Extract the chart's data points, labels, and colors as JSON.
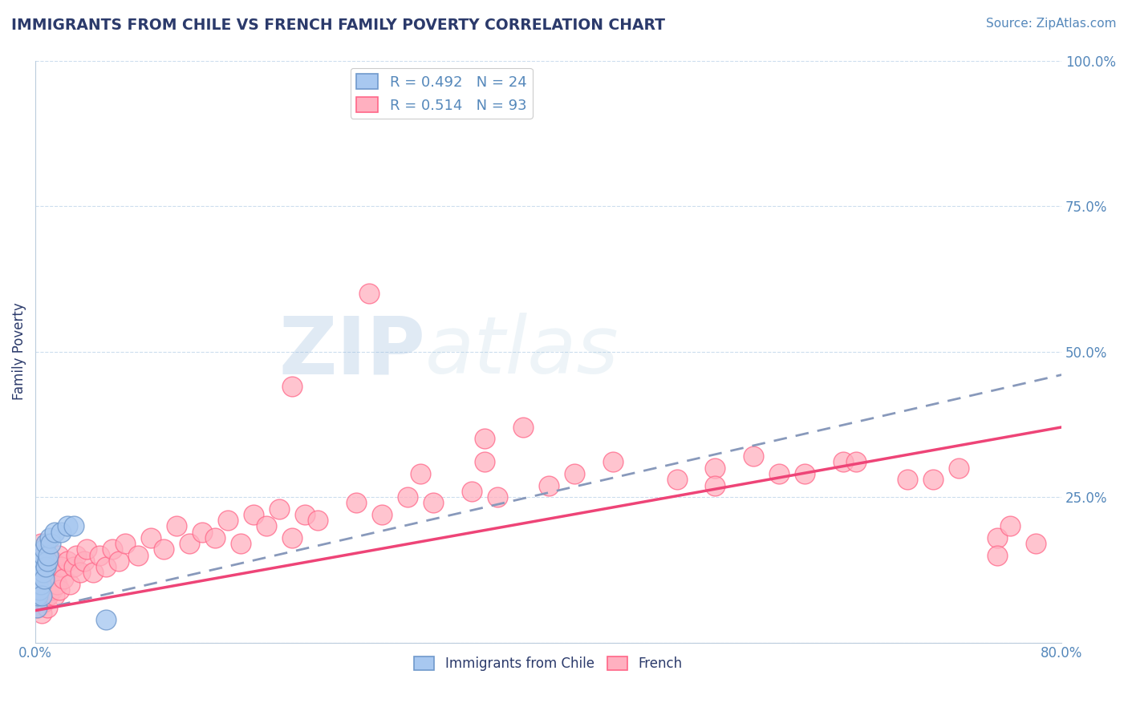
{
  "title": "IMMIGRANTS FROM CHILE VS FRENCH FAMILY POVERTY CORRELATION CHART",
  "source_text": "Source: ZipAtlas.com",
  "ylabel": "Family Poverty",
  "xlim": [
    0.0,
    0.8
  ],
  "ylim": [
    0.0,
    1.0
  ],
  "xticks": [
    0.0,
    0.1,
    0.2,
    0.3,
    0.4,
    0.5,
    0.6,
    0.7,
    0.8
  ],
  "xticklabels": [
    "0.0%",
    "",
    "",
    "",
    "",
    "",
    "",
    "",
    "80.0%"
  ],
  "yticks_right": [
    0.0,
    0.25,
    0.5,
    0.75,
    1.0
  ],
  "yticklabels_right": [
    "",
    "25.0%",
    "50.0%",
    "75.0%",
    "100.0%"
  ],
  "legend_r1": "R = 0.492",
  "legend_n1": "N = 24",
  "legend_r2": "R = 0.514",
  "legend_n2": "N = 93",
  "color_blue": "#A8C8F0",
  "color_pink": "#FFB0C0",
  "color_blue_edge": "#7099CC",
  "color_pink_edge": "#FF6688",
  "color_blue_line": "#8899BB",
  "color_pink_line": "#EE4477",
  "color_title": "#2B3A6B",
  "color_source": "#5588BB",
  "color_axis_labels": "#5588BB",
  "color_legend_text": "#5588BB",
  "watermark_zip": "ZIP",
  "watermark_atlas": "atlas",
  "background_color": "#FFFFFF",
  "grid_color": "#CCDDEE",
  "chile_x": [
    0.001,
    0.002,
    0.002,
    0.003,
    0.003,
    0.004,
    0.004,
    0.005,
    0.005,
    0.006,
    0.006,
    0.007,
    0.007,
    0.008,
    0.008,
    0.009,
    0.01,
    0.011,
    0.012,
    0.015,
    0.02,
    0.025,
    0.03,
    0.055
  ],
  "chile_y": [
    0.06,
    0.08,
    0.1,
    0.09,
    0.12,
    0.1,
    0.13,
    0.08,
    0.14,
    0.12,
    0.15,
    0.11,
    0.16,
    0.13,
    0.17,
    0.14,
    0.15,
    0.18,
    0.17,
    0.19,
    0.19,
    0.2,
    0.2,
    0.04
  ],
  "french_x": [
    0.001,
    0.001,
    0.002,
    0.002,
    0.002,
    0.003,
    0.003,
    0.003,
    0.004,
    0.004,
    0.004,
    0.005,
    0.005,
    0.005,
    0.006,
    0.006,
    0.007,
    0.007,
    0.008,
    0.008,
    0.009,
    0.009,
    0.01,
    0.01,
    0.011,
    0.012,
    0.013,
    0.014,
    0.015,
    0.016,
    0.017,
    0.018,
    0.019,
    0.02,
    0.022,
    0.025,
    0.027,
    0.03,
    0.032,
    0.035,
    0.038,
    0.04,
    0.045,
    0.05,
    0.055,
    0.06,
    0.065,
    0.07,
    0.08,
    0.09,
    0.1,
    0.11,
    0.12,
    0.13,
    0.14,
    0.15,
    0.16,
    0.17,
    0.18,
    0.19,
    0.2,
    0.21,
    0.22,
    0.25,
    0.27,
    0.29,
    0.31,
    0.34,
    0.36,
    0.2,
    0.26,
    0.3,
    0.35,
    0.4,
    0.42,
    0.45,
    0.5,
    0.53,
    0.56,
    0.6,
    0.63,
    0.68,
    0.72,
    0.75,
    0.76,
    0.78,
    0.35,
    0.38,
    0.53,
    0.58,
    0.64,
    0.7,
    0.75
  ],
  "french_y": [
    0.08,
    0.12,
    0.06,
    0.1,
    0.15,
    0.07,
    0.11,
    0.16,
    0.08,
    0.12,
    0.17,
    0.05,
    0.09,
    0.14,
    0.08,
    0.13,
    0.07,
    0.12,
    0.09,
    0.15,
    0.06,
    0.11,
    0.08,
    0.14,
    0.1,
    0.12,
    0.09,
    0.14,
    0.08,
    0.12,
    0.1,
    0.15,
    0.09,
    0.13,
    0.11,
    0.14,
    0.1,
    0.13,
    0.15,
    0.12,
    0.14,
    0.16,
    0.12,
    0.15,
    0.13,
    0.16,
    0.14,
    0.17,
    0.15,
    0.18,
    0.16,
    0.2,
    0.17,
    0.19,
    0.18,
    0.21,
    0.17,
    0.22,
    0.2,
    0.23,
    0.18,
    0.22,
    0.21,
    0.24,
    0.22,
    0.25,
    0.24,
    0.26,
    0.25,
    0.44,
    0.6,
    0.29,
    0.31,
    0.27,
    0.29,
    0.31,
    0.28,
    0.3,
    0.32,
    0.29,
    0.31,
    0.28,
    0.3,
    0.18,
    0.2,
    0.17,
    0.35,
    0.37,
    0.27,
    0.29,
    0.31,
    0.28,
    0.15
  ],
  "chile_trend_x0": 0.0,
  "chile_trend_y0": 0.055,
  "chile_trend_x1": 0.8,
  "chile_trend_y1": 0.46,
  "french_trend_x0": 0.0,
  "french_trend_y0": 0.055,
  "french_trend_x1": 0.8,
  "french_trend_y1": 0.37
}
